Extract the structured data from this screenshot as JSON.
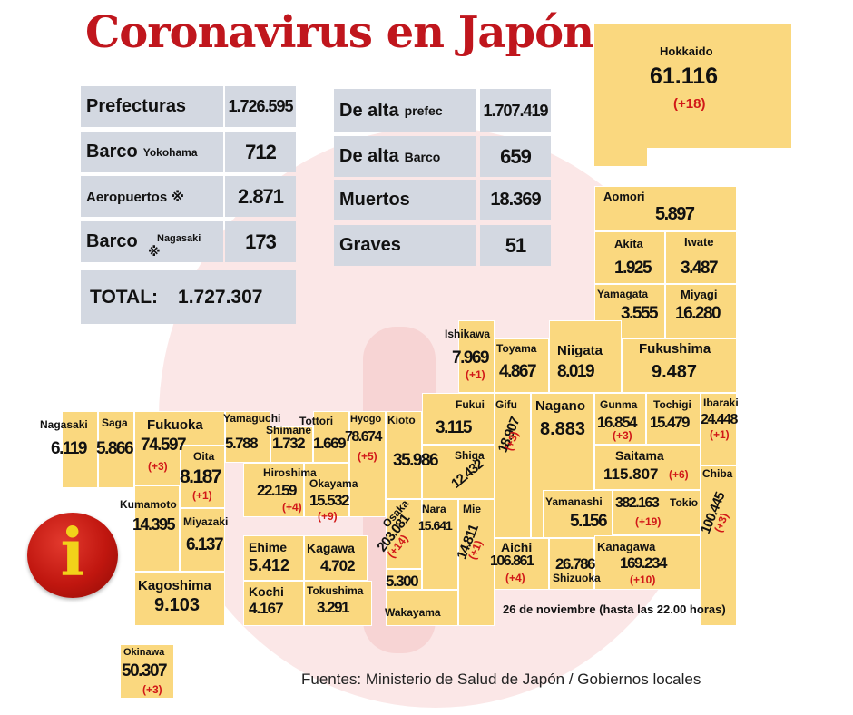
{
  "title": "Coronavirus en Japón",
  "stats_left": {
    "prefecturas": {
      "label": "Prefecturas",
      "value": "1.726.595"
    },
    "barco_yokohama": {
      "label": "Barco",
      "sub": "Yokohama",
      "value": "712"
    },
    "aeropuertos": {
      "label": "Aeropuertos ※",
      "value": "2.871"
    },
    "barco_nagasaki": {
      "label": "Barco",
      "mark": "※",
      "sub": "Nagasaki",
      "value": "173"
    },
    "total": {
      "label": "TOTAL:",
      "value": "1.727.307"
    }
  },
  "stats_right": {
    "de_alta_prefec": {
      "label": "De alta",
      "sub": "prefec",
      "value": "1.707.419"
    },
    "de_alta_barco": {
      "label": "De alta",
      "sub": "Barco",
      "value": "659"
    },
    "muertos": {
      "label": "Muertos",
      "value": "18.369"
    },
    "graves": {
      "label": "Graves",
      "value": "51"
    }
  },
  "prefectures": {
    "hokkaido": {
      "name": "Hokkaido",
      "value": "61.116",
      "delta": "(+18)"
    },
    "aomori": {
      "name": "Aomori",
      "value": "5.897"
    },
    "akita": {
      "name": "Akita",
      "value": "1.925"
    },
    "iwate": {
      "name": "Iwate",
      "value": "3.487"
    },
    "yamagata": {
      "name": "Yamagata",
      "value": "3.555"
    },
    "miyagi": {
      "name": "Miyagi",
      "value": "16.280"
    },
    "ishikawa": {
      "name": "Ishikawa",
      "value": "7.969",
      "delta": "(+1)"
    },
    "toyama": {
      "name": "Toyama",
      "value": "4.867"
    },
    "niigata": {
      "name": "Niigata",
      "value": "8.019"
    },
    "fukushima": {
      "name": "Fukushima",
      "value": "9.487"
    },
    "fukui": {
      "name": "Fukui",
      "value": "3.115"
    },
    "gifu": {
      "name": "Gifu",
      "value": "18.907",
      "delta": "(+3)"
    },
    "nagano": {
      "name": "Nagano",
      "value": "8.883"
    },
    "gunma": {
      "name": "Gunma",
      "value": "16.854",
      "delta": "(+3)"
    },
    "tochigi": {
      "name": "Tochigi",
      "value": "15.479"
    },
    "ibaraki": {
      "name": "Ibaraki",
      "value": "24.448",
      "delta": "(+1)"
    },
    "saitama": {
      "name": "Saitama",
      "value": "115.807",
      "delta": "(+6)"
    },
    "chiba": {
      "name": "Chiba",
      "value": "100.445",
      "delta": "(+3)"
    },
    "tokio": {
      "name": "Tokio",
      "value": "382.163",
      "delta": "(+19)"
    },
    "yamanashi": {
      "name": "Yamanashi",
      "value": "5.156"
    },
    "kanagawa": {
      "name": "Kanagawa",
      "value": "169.234",
      "delta": "(+10)"
    },
    "shizuoka": {
      "name": "Shizuoka",
      "value": "26.786"
    },
    "aichi": {
      "name": "Aichi",
      "value": "106.861",
      "delta": "(+4)"
    },
    "mie": {
      "name": "Mie",
      "value": "14.811",
      "delta": "(+1)"
    },
    "shiga": {
      "name": "Shiga",
      "value": "12.432"
    },
    "kioto": {
      "name": "Kioto",
      "value": "35.986"
    },
    "hyogo": {
      "name": "Hyogo",
      "value": "78.674",
      "delta": "(+5)"
    },
    "osaka": {
      "name": "Osaka",
      "value": "203.081",
      "delta": "(+14)"
    },
    "nara": {
      "name": "Nara",
      "value": "15.641"
    },
    "wakayama": {
      "name": "Wakayama",
      "value": "5.300"
    },
    "tottori": {
      "name": "Tottori",
      "value": "1.669"
    },
    "shimane": {
      "name": "Shimane",
      "value": "1.732"
    },
    "okayama": {
      "name": "Okayama",
      "value": "15.532",
      "delta": "(+9)"
    },
    "hiroshima": {
      "name": "Hiroshima",
      "value": "22.159",
      "delta": "(+4)"
    },
    "yamaguchi": {
      "name": "Yamaguchi",
      "value": "5.788"
    },
    "ehime": {
      "name": "Ehime",
      "value": "5.412"
    },
    "kagawa": {
      "name": "Kagawa",
      "value": "4.702"
    },
    "kochi": {
      "name": "Kochi",
      "value": "4.167"
    },
    "tokushima": {
      "name": "Tokushima",
      "value": "3.291"
    },
    "nagasaki": {
      "name": "Nagasaki",
      "value": "6.119"
    },
    "saga": {
      "name": "Saga",
      "value": "5.866"
    },
    "fukuoka": {
      "name": "Fukuoka",
      "value": "74.597",
      "delta": "(+3)"
    },
    "oita": {
      "name": "Oita",
      "value": "8.187",
      "delta": "(+1)"
    },
    "kumamoto": {
      "name": "Kumamoto",
      "value": "14.395"
    },
    "miyazaki": {
      "name": "Miyazaki",
      "value": "6.137"
    },
    "kagoshima": {
      "name": "Kagoshima",
      "value": "9.103"
    },
    "okinawa": {
      "name": "Okinawa",
      "value": "50.307",
      "delta": "(+3)"
    }
  },
  "date_note": "26 de noviembre  (hasta las  22.00 horas)",
  "sources": "Fuentes: Ministerio de Salud de Japón / Gobiernos locales",
  "info_glyph": "i",
  "icons": {
    "info": "info-icon"
  },
  "colors": {
    "title": "#c0161d",
    "tile": "#fad87f",
    "stat_box": "#d3d8e1",
    "delta": "#d11818"
  }
}
